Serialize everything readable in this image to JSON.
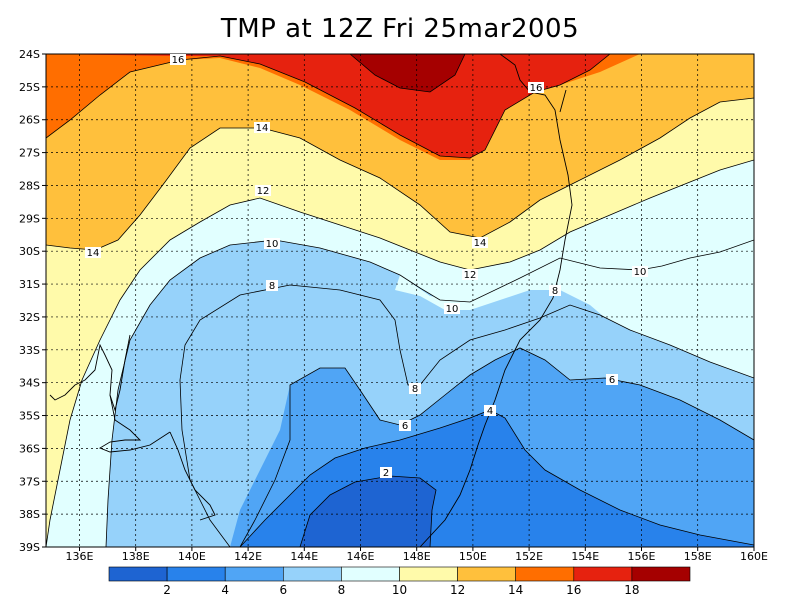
{
  "title": "TMP at 12Z Fri 25mar2005",
  "lat_labels": [
    "24S",
    "25S",
    "26S",
    "27S",
    "28S",
    "29S",
    "30S",
    "31S",
    "32S",
    "33S",
    "34S",
    "35S",
    "36S",
    "37S",
    "38S",
    "39S"
  ],
  "lon_labels": [
    "136E",
    "138E",
    "140E",
    "142E",
    "144E",
    "146E",
    "148E",
    "150E",
    "152E",
    "154E",
    "156E",
    "158E",
    "160E"
  ],
  "contour_labels": {
    "c16a": "16",
    "c16b": "16",
    "c14a": "14",
    "c14b": "14",
    "c14c": "14",
    "c12a": "12",
    "c12b": "12",
    "c10a": "10",
    "c10b": "10",
    "c10c": "10",
    "c8a": "8",
    "c8b": "8",
    "c8c": "8",
    "c6a": "6",
    "c6b": "6",
    "c4": "4",
    "c2": "2"
  },
  "colorbar": {
    "labels": [
      "2",
      "4",
      "6",
      "8",
      "10",
      "12",
      "14",
      "16",
      "18"
    ],
    "colors": [
      "#1e64d2",
      "#2882eb",
      "#50a5f5",
      "#96d2fa",
      "#e1ffff",
      "#fffaaa",
      "#ffc03c",
      "#ff6e00",
      "#e6220f",
      "#a50000"
    ]
  }
}
